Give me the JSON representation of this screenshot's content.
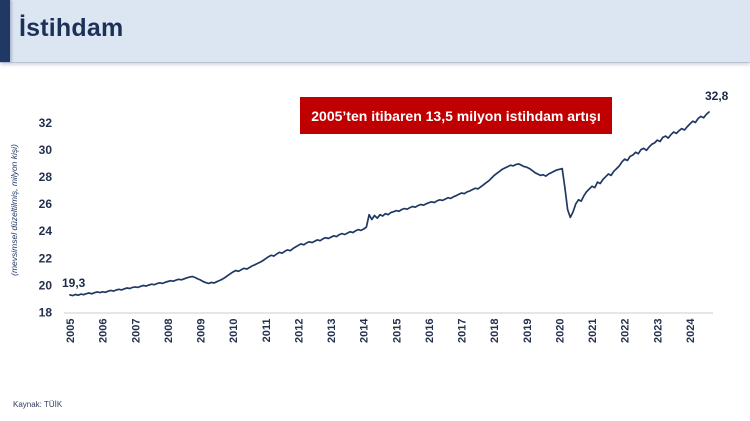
{
  "header": {
    "title": "İstihdam"
  },
  "annotation": {
    "text": "2005’ten itibaren 13,5 milyon istihdam artışı",
    "bg_color": "#c00000",
    "text_color": "#ffffff"
  },
  "footer": {
    "source": "Kaynak: TÜİK"
  },
  "chart_data": {
    "type": "line",
    "title": "İstihdam",
    "ylabel": "(mevsimsel düzeltilmiş, milyon kişi)",
    "xlabel": "",
    "x_ticks": [
      "2005",
      "2006",
      "2007",
      "2008",
      "2009",
      "2010",
      "2011",
      "2012",
      "2013",
      "2014",
      "2015",
      "2016",
      "2017",
      "2018",
      "2019",
      "2020",
      "2021",
      "2022",
      "2023",
      "2024"
    ],
    "y_ticks": [
      18,
      20,
      22,
      24,
      26,
      28,
      30,
      32
    ],
    "ylim": [
      18,
      33.5
    ],
    "grid": false,
    "legend": false,
    "first_label": "19,3",
    "last_label": "32,8",
    "line_color": "#1f3864",
    "series": [
      {
        "name": "İstihdam (mevsimsel düzeltilmiş, milyon kişi)",
        "color": "#1f3864",
        "start": "2005-01",
        "frequency": "monthly",
        "values": [
          19.3,
          19.25,
          19.33,
          19.28,
          19.36,
          19.31,
          19.39,
          19.44,
          19.38,
          19.46,
          19.52,
          19.47,
          19.53,
          19.49,
          19.57,
          19.63,
          19.58,
          19.66,
          19.71,
          19.67,
          19.75,
          19.81,
          19.77,
          19.85,
          19.89,
          19.85,
          19.93,
          19.99,
          19.95,
          20.03,
          20.09,
          20.05,
          20.13,
          20.19,
          20.15,
          20.23,
          20.29,
          20.35,
          20.31,
          20.39,
          20.45,
          20.41,
          20.49,
          20.56,
          20.61,
          20.66,
          20.58,
          20.48,
          20.4,
          20.28,
          20.2,
          20.15,
          20.22,
          20.18,
          20.27,
          20.36,
          20.46,
          20.58,
          20.72,
          20.86,
          21.0,
          21.1,
          21.04,
          21.16,
          21.26,
          21.2,
          21.32,
          21.44,
          21.52,
          21.62,
          21.72,
          21.84,
          21.98,
          22.12,
          22.22,
          22.16,
          22.32,
          22.44,
          22.38,
          22.52,
          22.62,
          22.56,
          22.72,
          22.84,
          22.96,
          23.06,
          23.0,
          23.14,
          23.22,
          23.16,
          23.26,
          23.36,
          23.3,
          23.44,
          23.52,
          23.46,
          23.56,
          23.66,
          23.6,
          23.74,
          23.82,
          23.76,
          23.86,
          23.96,
          23.9,
          24.02,
          24.12,
          24.06,
          24.16,
          24.3,
          25.22,
          24.86,
          25.16,
          24.96,
          25.22,
          25.12,
          25.3,
          25.22,
          25.38,
          25.44,
          25.52,
          25.47,
          25.6,
          25.67,
          25.62,
          25.74,
          25.82,
          25.77,
          25.9,
          25.97,
          25.92,
          26.02,
          26.1,
          26.17,
          26.12,
          26.24,
          26.32,
          26.27,
          26.37,
          26.47,
          26.42,
          26.54,
          26.62,
          26.72,
          26.82,
          26.77,
          26.9,
          26.97,
          27.07,
          27.17,
          27.12,
          27.27,
          27.42,
          27.57,
          27.72,
          27.92,
          28.12,
          28.27,
          28.42,
          28.57,
          28.67,
          28.77,
          28.87,
          28.82,
          28.92,
          28.97,
          28.87,
          28.77,
          28.72,
          28.62,
          28.47,
          28.32,
          28.22,
          28.12,
          28.17,
          28.07,
          28.22,
          28.32,
          28.42,
          28.52,
          28.57,
          28.62,
          27.2,
          25.6,
          25.02,
          25.42,
          26.02,
          26.32,
          26.22,
          26.62,
          26.92,
          27.12,
          27.32,
          27.22,
          27.62,
          27.52,
          27.82,
          28.02,
          28.22,
          28.12,
          28.42,
          28.62,
          28.82,
          29.12,
          29.32,
          29.22,
          29.52,
          29.62,
          29.82,
          29.72,
          30.02,
          30.12,
          29.97,
          30.22,
          30.42,
          30.52,
          30.72,
          30.62,
          30.92,
          31.02,
          30.87,
          31.12,
          31.32,
          31.22,
          31.42,
          31.57,
          31.47,
          31.72,
          31.92,
          32.12,
          32.02,
          32.32,
          32.47,
          32.37,
          32.62,
          32.8
        ]
      }
    ]
  }
}
